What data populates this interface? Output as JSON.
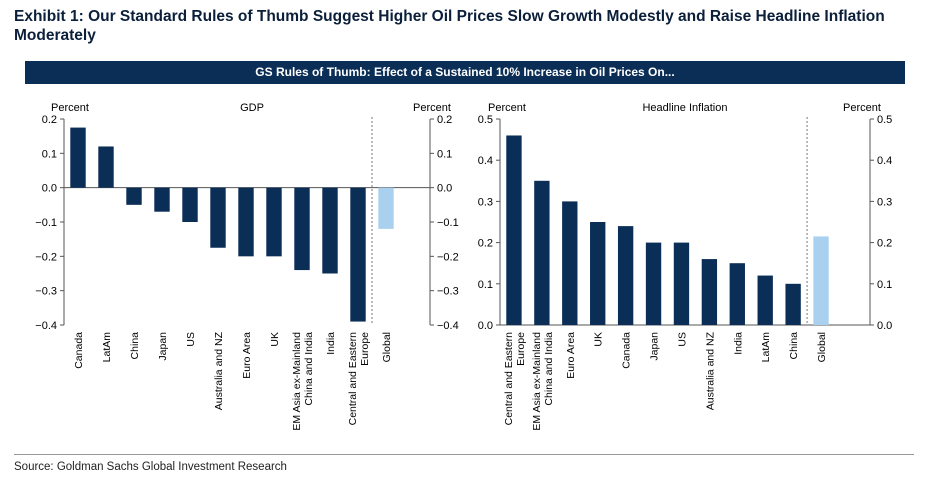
{
  "header": {
    "title": "Exhibit 1: Our Standard Rules of Thumb Suggest Higher Oil Prices Slow Growth Modestly and Raise Headline Inflation Moderately",
    "banner": "GS Rules of Thumb: Effect of a Sustained 10% Increase in Oil Prices On..."
  },
  "footer": {
    "source": "Source: Goldman Sachs Global Investment Research"
  },
  "colors": {
    "bar": "#0b2e57",
    "highlight": "#a9d1ef",
    "banner": "#0b2e57"
  },
  "chart_data": [
    {
      "type": "bar",
      "title": "GDP",
      "ylabel_left": "Percent",
      "ylabel_right": "Percent",
      "ylim": [
        -0.4,
        0.2
      ],
      "yticks": [
        0.2,
        0.1,
        0.0,
        -0.1,
        -0.2,
        -0.3,
        -0.4
      ],
      "ytick_labels": [
        "0.2",
        "0.1",
        "0.0",
        "−0.1",
        "−0.2",
        "−0.3",
        "−0.4"
      ],
      "categories": [
        "Canada",
        "LatAm",
        "China",
        "Japan",
        "US",
        "Australia and NZ",
        "Euro Area",
        "UK",
        "EM Asia ex-Mainland China and India",
        "India",
        "Central and Eastern Europe",
        "Global"
      ],
      "values": [
        0.175,
        0.12,
        -0.05,
        -0.07,
        -0.1,
        -0.175,
        -0.2,
        -0.2,
        -0.24,
        -0.25,
        -0.39,
        -0.12
      ],
      "highlight_categories": [
        "Global"
      ],
      "grid": false,
      "separator_before": "Global"
    },
    {
      "type": "bar",
      "title": "Headline Inflation",
      "ylabel_left": "Percent",
      "ylabel_right": "Percent",
      "ylim": [
        0,
        0.5
      ],
      "yticks": [
        0.5,
        0.4,
        0.3,
        0.2,
        0.1,
        0.0
      ],
      "ytick_labels": [
        "0.5",
        "0.4",
        "0.3",
        "0.2",
        "0.1",
        "0.0"
      ],
      "categories": [
        "Central and Eastern Europe",
        "EM Asia ex-Mainland China and India",
        "Euro Area",
        "UK",
        "Canada",
        "Japan",
        "US",
        "Australia and NZ",
        "India",
        "LatAm",
        "China",
        "Global"
      ],
      "values": [
        0.46,
        0.35,
        0.3,
        0.25,
        0.24,
        0.2,
        0.2,
        0.16,
        0.15,
        0.12,
        0.1,
        0.215
      ],
      "highlight_categories": [
        "Global"
      ],
      "grid": false,
      "separator_before": "Global"
    }
  ]
}
